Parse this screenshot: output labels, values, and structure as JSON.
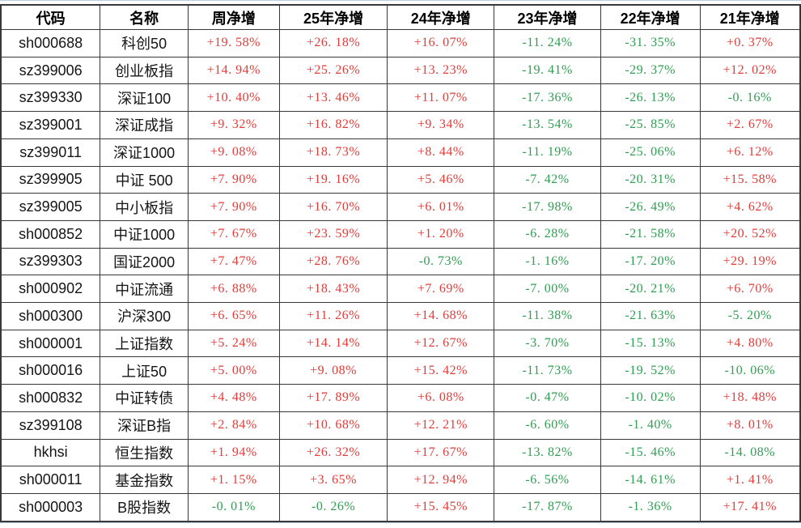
{
  "colors": {
    "positive_text": "#e23c39",
    "negative_text": "#2f9e52",
    "header_text": "#000000",
    "cell_border": "#383838",
    "gridline_blue": "#b9cde4",
    "background": "#ffffff"
  },
  "chart_data": {
    "type": "table",
    "title": "",
    "columns": [
      "代码",
      "名称",
      "周净增",
      "25年净增",
      "24年净增",
      "23年净增",
      "22年净增",
      "21年净增"
    ],
    "rows": [
      [
        "sh000688",
        "科创50",
        "+19.58%",
        "+26.18%",
        "+16.07%",
        "-11.24%",
        "-31.35%",
        "+0.37%"
      ],
      [
        "sz399006",
        "创业板指",
        "+14.94%",
        "+25.26%",
        "+13.23%",
        "-19.41%",
        "-29.37%",
        "+12.02%"
      ],
      [
        "sz399330",
        "深证100",
        "+10.40%",
        "+13.46%",
        "+11.07%",
        "-17.36%",
        "-26.13%",
        "-0.16%"
      ],
      [
        "sz399001",
        "深证成指",
        "+9.32%",
        "+16.82%",
        "+9.34%",
        "-13.54%",
        "-25.85%",
        "+2.67%"
      ],
      [
        "sz399011",
        "深证1000",
        "+9.08%",
        "+18.73%",
        "+8.44%",
        "-11.19%",
        "-25.06%",
        "+6.12%"
      ],
      [
        "sz399905",
        "中证 500",
        "+7.90%",
        "+19.16%",
        "+5.46%",
        "-7.42%",
        "-20.31%",
        "+15.58%"
      ],
      [
        "sz399005",
        "中小板指",
        "+7.90%",
        "+16.70%",
        "+6.01%",
        "-17.98%",
        "-26.49%",
        "+4.62%"
      ],
      [
        "sh000852",
        "中证1000",
        "+7.67%",
        "+23.59%",
        "+1.20%",
        "-6.28%",
        "-21.58%",
        "+20.52%"
      ],
      [
        "sz399303",
        "国证2000",
        "+7.47%",
        "+28.76%",
        "-0.73%",
        "-1.16%",
        "-17.20%",
        "+29.19%"
      ],
      [
        "sh000902",
        "中证流通",
        "+6.88%",
        "+18.43%",
        "+7.69%",
        "-7.00%",
        "-20.21%",
        "+6.70%"
      ],
      [
        "sh000300",
        "沪深300",
        "+6.65%",
        "+11.26%",
        "+14.68%",
        "-11.38%",
        "-21.63%",
        "-5.20%"
      ],
      [
        "sh000001",
        "上证指数",
        "+5.24%",
        "+14.14%",
        "+12.67%",
        "-3.70%",
        "-15.13%",
        "+4.80%"
      ],
      [
        "sh000016",
        "上证50",
        "+5.00%",
        "+9.08%",
        "+15.42%",
        "-11.73%",
        "-19.52%",
        "-10.06%"
      ],
      [
        "sh000832",
        "中证转债",
        "+4.48%",
        "+17.89%",
        "+6.08%",
        "-0.47%",
        "-10.02%",
        "+18.48%"
      ],
      [
        "sz399108",
        "深证B指",
        "+2.84%",
        "+10.68%",
        "+12.21%",
        "-6.60%",
        "-1.40%",
        "+8.01%"
      ],
      [
        "hkhsi",
        "恒生指数",
        "+1.94%",
        "+26.32%",
        "+17.67%",
        "-13.82%",
        "-15.46%",
        "-14.08%"
      ],
      [
        "sh000011",
        "基金指数",
        "+1.15%",
        "+3.65%",
        "+12.94%",
        "-6.56%",
        "-14.61%",
        "+1.41%"
      ],
      [
        "sh000003",
        "B股指数",
        "-0.01%",
        "-0.26%",
        "+15.45%",
        "-17.87%",
        "-1.36%",
        "+17.41%"
      ]
    ]
  }
}
